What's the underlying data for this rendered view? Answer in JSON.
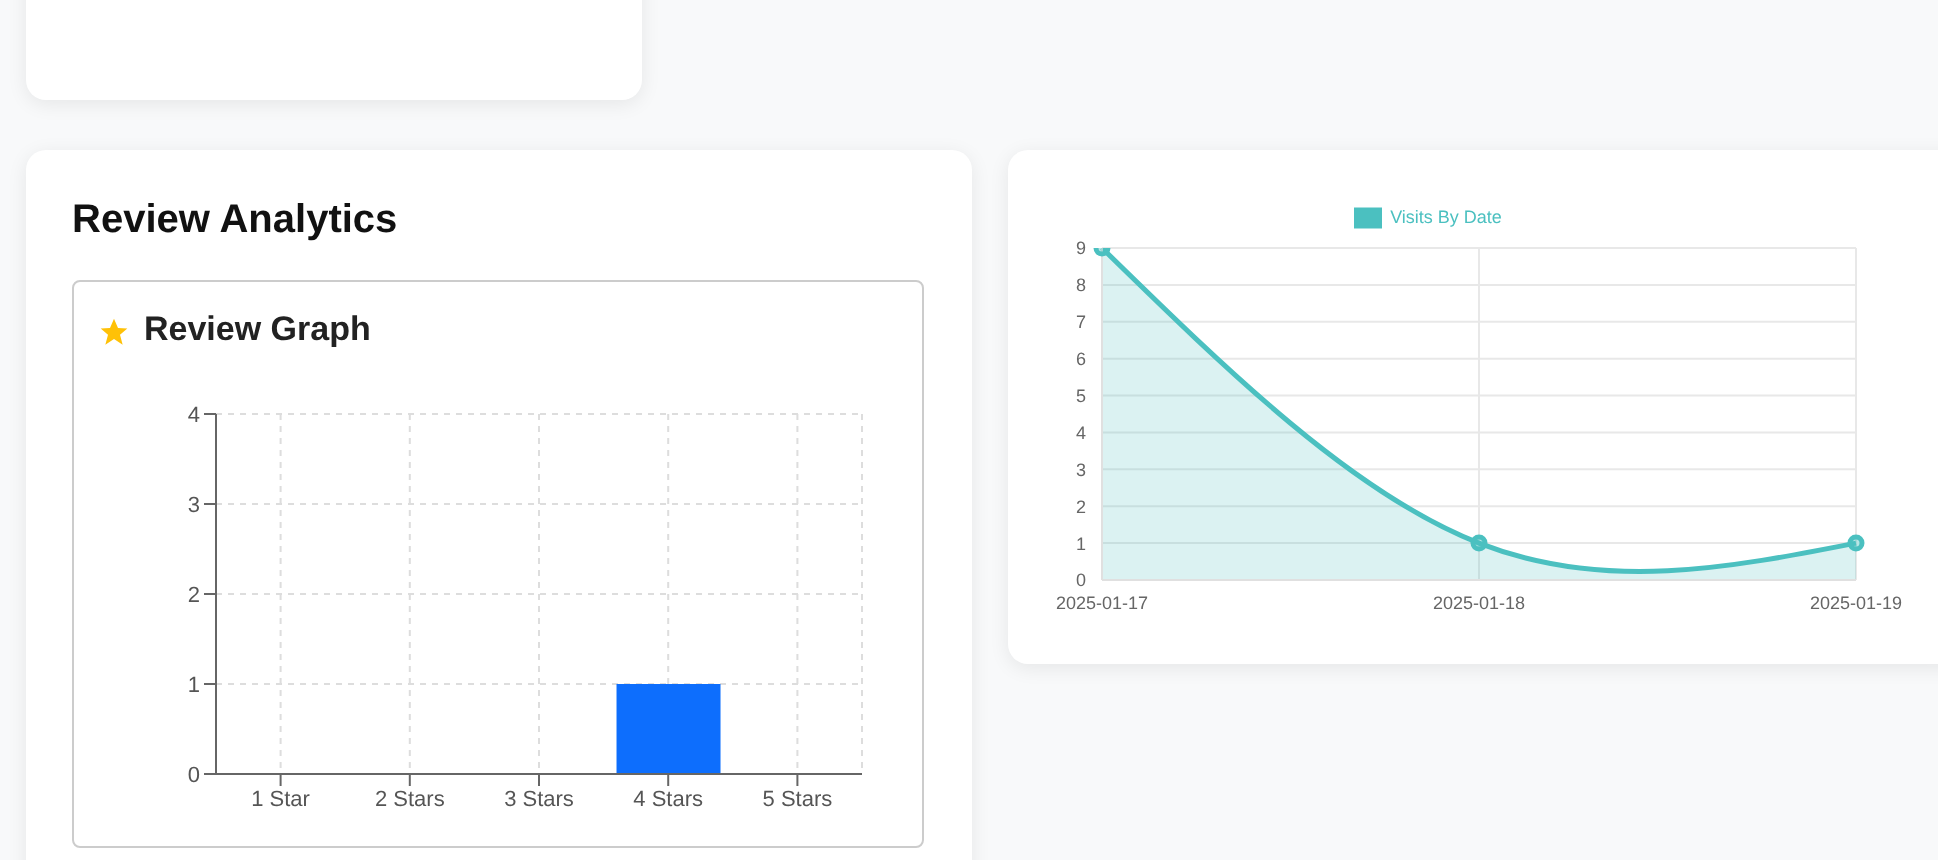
{
  "chart_data": [
    {
      "type": "bar",
      "title": "Review Analytics",
      "subtitle": "Review Graph",
      "categories": [
        "1 Star",
        "2 Stars",
        "3 Stars",
        "4 Stars",
        "5 Stars"
      ],
      "values": [
        0,
        0,
        0,
        1,
        0
      ],
      "color": "#0d6efd",
      "ylim": [
        0,
        4
      ],
      "yticks": [
        0,
        1,
        2,
        3,
        4
      ],
      "grid": true,
      "legend": false
    },
    {
      "type": "area",
      "categories": [
        "2025-01-17",
        "2025-01-18",
        "2025-01-19"
      ],
      "series": [
        {
          "name": "Visits By Date",
          "color": "#4bc0c0",
          "values": [
            9,
            1,
            1
          ]
        }
      ],
      "ylim": [
        0,
        9
      ],
      "yticks": [
        0,
        1,
        2,
        3,
        4,
        5,
        6,
        7,
        8,
        9
      ],
      "grid": true,
      "legend": "top",
      "marker": "circle"
    }
  ]
}
